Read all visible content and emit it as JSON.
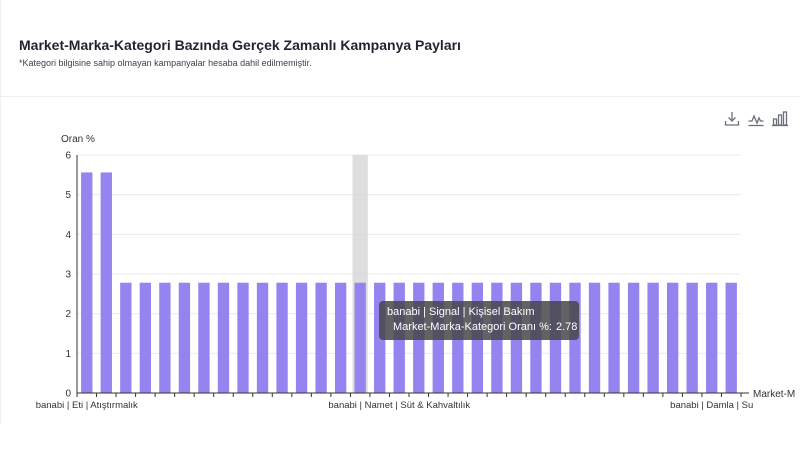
{
  "header": {
    "title": "Market-Marka-Kategori Bazında Gerçek Zamanlı Kampanya Payları",
    "subtitle": "*Kategori bilgisine sahip olmayan kampanyalar hesaba dahil edilmemiştir."
  },
  "toolbox": {
    "download": "download-icon",
    "line": "line-chart-icon",
    "bar": "bar-chart-icon"
  },
  "tooltip": {
    "category": "banabi | Signal | Kişisel Bakım",
    "series_name": "Market-Marka-Kategori Oranı %",
    "value_text": "2.78"
  },
  "colors": {
    "bar": "#9484f0",
    "highlight": "#d6d6d6"
  },
  "chart_data": {
    "type": "bar",
    "ylabel": "Oran %",
    "xlabel": "Market-M",
    "ylim": [
      0,
      6
    ],
    "yticks": [
      0,
      1,
      2,
      3,
      4,
      5,
      6
    ],
    "grid": true,
    "series": [
      {
        "name": "Market-Marka-Kategori Oranı %",
        "values": [
          5.56,
          5.56,
          2.78,
          2.78,
          2.78,
          2.78,
          2.78,
          2.78,
          2.78,
          2.78,
          2.78,
          2.78,
          2.78,
          2.78,
          2.78,
          2.78,
          2.78,
          2.78,
          2.78,
          2.78,
          2.78,
          2.78,
          2.78,
          2.78,
          2.78,
          2.78,
          2.78,
          2.78,
          2.78,
          2.78,
          2.78,
          2.78,
          2.78,
          2.78
        ]
      }
    ],
    "highlighted_index": 14,
    "visible_tick_labels": [
      {
        "index": 0,
        "label": "banabi | Eti | Atıştırmalık"
      },
      {
        "index": 16,
        "label": "banabi | Namet | Süt & Kahvaltılık"
      },
      {
        "index": 32,
        "label": "banabi | Damla | Su"
      }
    ]
  }
}
